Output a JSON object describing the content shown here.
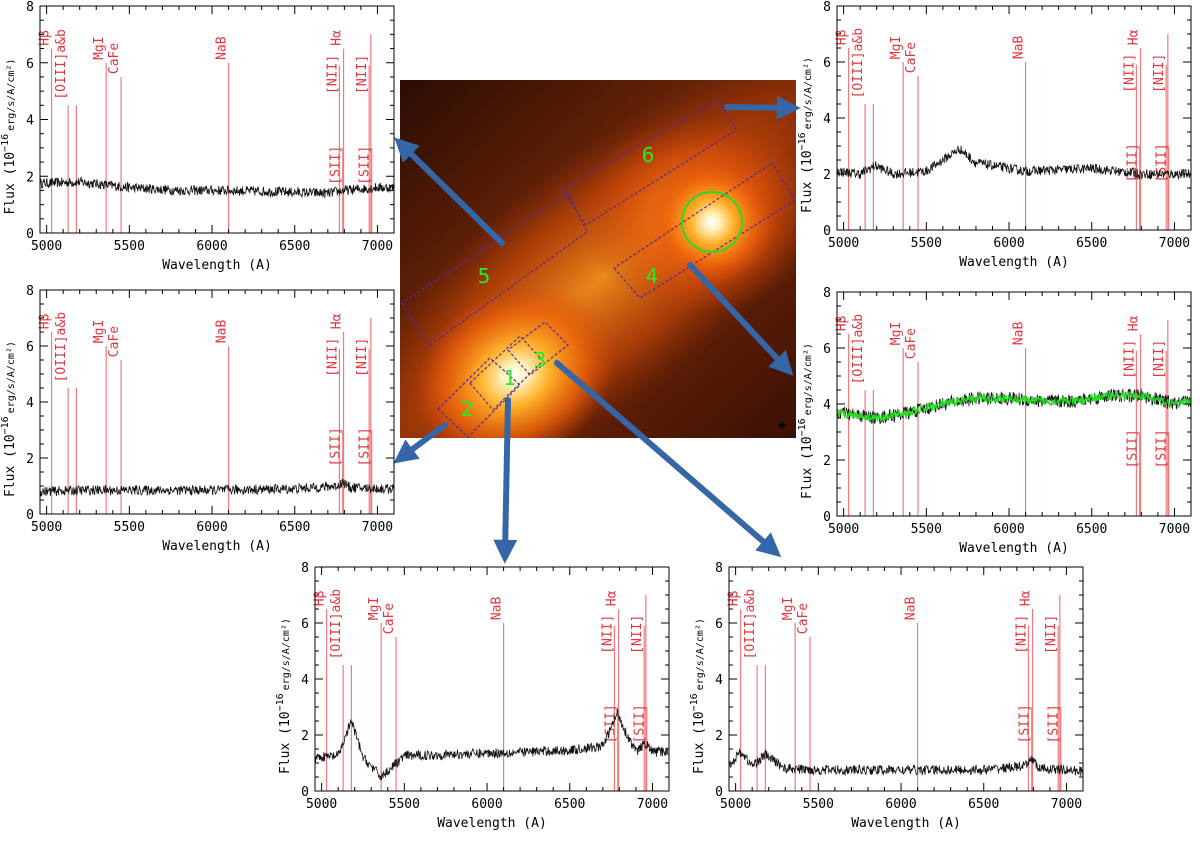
{
  "image": {
    "region_labels": [
      "1",
      "2",
      "3",
      "4",
      "5",
      "6"
    ]
  },
  "colors": {
    "spectrum": "#111111",
    "fit": "#22dd22",
    "line_marker": "#f07a7e",
    "line_label": "#e0383e",
    "arrow": "#3566a8",
    "slit": "#5a2a9a",
    "region_label": "#22ee22"
  },
  "chart_data": [
    {
      "type": "line",
      "region": "5",
      "xlabel": "Wavelength (A)",
      "ylabel": "Flux (10⁻¹⁶ erg/s/A/cm²)",
      "xlim": [
        4960,
        7100
      ],
      "ylim": [
        0,
        8
      ],
      "x": [
        4960,
        5200,
        5500,
        5800,
        6100,
        6400,
        6700,
        6800,
        7000,
        7100
      ],
      "y": [
        1.75,
        1.8,
        1.6,
        1.5,
        1.5,
        1.45,
        1.4,
        1.5,
        1.6,
        1.6
      ]
    },
    {
      "type": "line",
      "region": "6",
      "xlabel": "Wavelength (A)",
      "ylabel": "Flux (10⁻¹⁶ erg/s/A/cm²)",
      "xlim": [
        4960,
        7100
      ],
      "ylim": [
        0,
        8
      ],
      "x": [
        4960,
        5100,
        5190,
        5300,
        5500,
        5700,
        5800,
        6100,
        6500,
        6800,
        7000,
        7100
      ],
      "y": [
        2.1,
        2.0,
        2.3,
        2.0,
        2.1,
        2.9,
        2.4,
        2.1,
        2.2,
        2.0,
        2.0,
        2.0
      ]
    },
    {
      "type": "line",
      "region": "2",
      "xlabel": "Wavelength (A)",
      "ylabel": "Flux (10⁻¹⁶ erg/s/A/cm²)",
      "xlim": [
        4960,
        7100
      ],
      "ylim": [
        0,
        8
      ],
      "x": [
        4960,
        5200,
        5500,
        6000,
        6500,
        6760,
        6790,
        6830,
        7000,
        7100
      ],
      "y": [
        0.8,
        0.85,
        0.85,
        0.85,
        0.9,
        1.0,
        1.15,
        0.95,
        0.9,
        0.9
      ]
    },
    {
      "type": "line",
      "region": "4",
      "xlabel": "Wavelength (A)",
      "ylabel": "Flux (10⁻¹⁶ erg/s/A/cm²)",
      "xlim": [
        4960,
        7100
      ],
      "ylim": [
        0,
        8
      ],
      "x": [
        4960,
        5200,
        5400,
        5600,
        5800,
        6000,
        6200,
        6400,
        6600,
        6800,
        7000,
        7100
      ],
      "y": [
        3.7,
        3.5,
        3.7,
        4.0,
        4.2,
        4.2,
        4.1,
        4.1,
        4.3,
        4.3,
        4.0,
        4.1
      ],
      "series": [
        {
          "name": "",
          "role": "observed"
        },
        {
          "name": "",
          "role": "model-fit"
        }
      ]
    },
    {
      "type": "line",
      "region": "1",
      "xlabel": "Wavelength (A)",
      "ylabel": "Flux (10⁻¹⁶ erg/s/A/cm²)",
      "xlim": [
        4960,
        7100
      ],
      "ylim": [
        0,
        8
      ],
      "x": [
        4960,
        5100,
        5180,
        5250,
        5360,
        5500,
        6000,
        6500,
        6700,
        6790,
        6830,
        6900,
        6960,
        7000,
        7100
      ],
      "y": [
        1.2,
        1.25,
        2.5,
        1.2,
        0.5,
        1.25,
        1.35,
        1.45,
        1.6,
        2.8,
        2.2,
        1.4,
        1.7,
        1.4,
        1.4
      ]
    },
    {
      "type": "line",
      "region": "3",
      "xlabel": "Wavelength (A)",
      "ylabel": "Flux (10⁻¹⁶ erg/s/A/cm²)",
      "xlim": [
        4960,
        7100
      ],
      "ylim": [
        0,
        8
      ],
      "x": [
        4960,
        5030,
        5100,
        5180,
        5300,
        5500,
        6000,
        6500,
        6760,
        6790,
        6830,
        7000,
        7100
      ],
      "y": [
        0.9,
        1.4,
        0.9,
        1.3,
        0.8,
        0.75,
        0.75,
        0.75,
        0.9,
        1.2,
        0.8,
        0.75,
        0.7
      ]
    }
  ],
  "axes": {
    "x_ticks": [
      "5000",
      "5500",
      "6000",
      "6500",
      "7000"
    ],
    "y_ticks": [
      "0",
      "2",
      "4",
      "6",
      "8"
    ],
    "xlabel": "Wavelength (A)",
    "ylabel_main": "Flux (10",
    "ylabel_exp": "−16",
    "ylabel_unit": "erg/s/A/cm²)"
  },
  "lines": [
    {
      "label": "Hβ",
      "wl": 5030,
      "top": 6.5,
      "label_bottom": 6.6
    },
    {
      "label": "[OIII]a&b",
      "wl": 5130,
      "top": 4.5,
      "label_bottom": 4.7
    },
    {
      "label": "",
      "wl": 5180,
      "top": 4.5,
      "label_bottom": 0
    },
    {
      "label": "MgI",
      "wl": 5360,
      "top": 6.0,
      "label_bottom": 6.1
    },
    {
      "label": "CaFe",
      "wl": 5450,
      "top": 5.5,
      "label_bottom": 5.6
    },
    {
      "label": "NaB",
      "wl": 6100,
      "top": 6.0,
      "label_bottom": 6.1
    },
    {
      "label": "Hα",
      "wl": 6795,
      "top": 6.5,
      "label_bottom": 6.6
    },
    {
      "label": "[NII]",
      "wl": 6770,
      "top": 5.9,
      "label_bottom": 4.9
    },
    {
      "label": "[NII]",
      "wl": 6950,
      "top": 5.9,
      "label_bottom": 4.9
    },
    {
      "label": "",
      "wl": 6960,
      "top": 7.0,
      "label_bottom": 0
    },
    {
      "label": "[SII]",
      "wl": 6790,
      "top": 3.0,
      "label_bottom": 1.7
    },
    {
      "label": "[SII]",
      "wl": 6965,
      "top": 3.0,
      "label_bottom": 1.7
    }
  ]
}
